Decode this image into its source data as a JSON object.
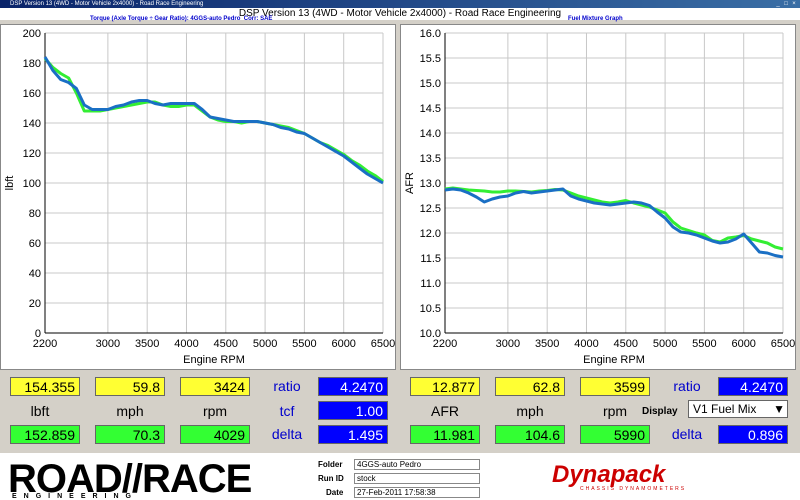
{
  "window": {
    "title": "DSP Version 13 (4WD - Motor Vehicle 2x4000) - Road Race Engineering",
    "subtitle": "DSP Version 13 (4WD - Motor Vehicle 2x4000) - Road Race Engineering"
  },
  "left_panel": {
    "title": "Torque (Axle Torque ÷ Gear Ratio): 4GGS-auto Pedro",
    "corr": "Corr: SAE"
  },
  "right_panel": {
    "title": "Fuel Mixture Graph"
  },
  "colors": {
    "green_run": "#33ee33",
    "blue_run": "#1a6fc4",
    "yellow_box": "#ffff33",
    "green_box": "#33ff33",
    "blue_box": "#0000ff"
  },
  "chart_data": [
    {
      "type": "line",
      "xlabel": "Engine RPM",
      "ylabel": "lbft",
      "xlim": [
        2200,
        6500
      ],
      "ylim": [
        0,
        200
      ],
      "xticks": [
        2200,
        3000,
        3500,
        4000,
        4500,
        5000,
        5500,
        6000,
        6500
      ],
      "yticks": [
        0,
        20,
        40,
        60,
        80,
        100,
        120,
        140,
        160,
        180,
        200
      ],
      "series": [
        {
          "color": "#33ee33",
          "x": [
            2200,
            2300,
            2400,
            2500,
            2600,
            2700,
            2800,
            2900,
            3000,
            3100,
            3200,
            3300,
            3400,
            3500,
            3600,
            3700,
            3800,
            3900,
            4000,
            4100,
            4200,
            4300,
            4400,
            4500,
            4600,
            4700,
            4800,
            4900,
            5000,
            5100,
            5200,
            5300,
            5400,
            5500,
            5600,
            5700,
            5800,
            5900,
            6000,
            6100,
            6200,
            6300,
            6400,
            6500
          ],
          "y": [
            183,
            177,
            173,
            170,
            160,
            148,
            148,
            148,
            149,
            150,
            151,
            152,
            153,
            154,
            154,
            152,
            151,
            151,
            152,
            152,
            148,
            144,
            142,
            141,
            141,
            140,
            141,
            141,
            140,
            139,
            138,
            137,
            135,
            133,
            130,
            127,
            125,
            122,
            119,
            115,
            112,
            108,
            105,
            101
          ]
        },
        {
          "color": "#1a6fc4",
          "x": [
            2200,
            2300,
            2400,
            2500,
            2600,
            2700,
            2800,
            2900,
            3000,
            3100,
            3200,
            3300,
            3400,
            3500,
            3600,
            3700,
            3800,
            3900,
            4000,
            4100,
            4200,
            4300,
            4400,
            4500,
            4600,
            4700,
            4800,
            4900,
            5000,
            5100,
            5200,
            5300,
            5400,
            5500,
            5600,
            5700,
            5800,
            5900,
            6000,
            6100,
            6200,
            6300,
            6400,
            6500
          ],
          "y": [
            184,
            175,
            169,
            167,
            163,
            152,
            149,
            149,
            149,
            151,
            152,
            154,
            155,
            155,
            153,
            152,
            153,
            153,
            153,
            153,
            149,
            144,
            143,
            142,
            141,
            141,
            141,
            141,
            140,
            139,
            137,
            136,
            134,
            133,
            130,
            127,
            124,
            121,
            118,
            114,
            110,
            106,
            103,
            100
          ]
        }
      ]
    },
    {
      "type": "line",
      "xlabel": "Engine RPM",
      "ylabel": "AFR",
      "xlim": [
        2200,
        6500
      ],
      "ylim": [
        10.0,
        16.0
      ],
      "xticks": [
        2200,
        3000,
        3500,
        4000,
        4500,
        5000,
        5500,
        6000,
        6500
      ],
      "yticks": [
        10.0,
        10.5,
        11.0,
        11.5,
        12.0,
        12.5,
        13.0,
        13.5,
        14.0,
        14.5,
        15.0,
        15.5,
        16.0
      ],
      "series": [
        {
          "color": "#33ee33",
          "x": [
            2200,
            2300,
            2400,
            2500,
            2600,
            2700,
            2800,
            2900,
            3000,
            3100,
            3200,
            3300,
            3400,
            3500,
            3600,
            3700,
            3800,
            3900,
            4000,
            4100,
            4200,
            4300,
            4400,
            4500,
            4600,
            4700,
            4800,
            4900,
            5000,
            5100,
            5200,
            5300,
            5400,
            5500,
            5600,
            5700,
            5800,
            5900,
            6000,
            6100,
            6200,
            6300,
            6400,
            6500
          ],
          "y": [
            12.88,
            12.9,
            12.88,
            12.86,
            12.85,
            12.84,
            12.82,
            12.82,
            12.84,
            12.84,
            12.83,
            12.82,
            12.84,
            12.85,
            12.87,
            12.86,
            12.8,
            12.74,
            12.7,
            12.66,
            12.62,
            12.6,
            12.62,
            12.65,
            12.6,
            12.56,
            12.52,
            12.46,
            12.4,
            12.22,
            12.1,
            12.05,
            12.0,
            11.96,
            11.85,
            11.82,
            11.9,
            11.92,
            11.95,
            11.88,
            11.84,
            11.8,
            11.72,
            11.68
          ]
        },
        {
          "color": "#1a6fc4",
          "x": [
            2200,
            2300,
            2400,
            2500,
            2600,
            2700,
            2800,
            2900,
            3000,
            3100,
            3200,
            3300,
            3400,
            3500,
            3600,
            3700,
            3800,
            3900,
            4000,
            4100,
            4200,
            4300,
            4400,
            4500,
            4600,
            4700,
            4800,
            4900,
            5000,
            5100,
            5200,
            5300,
            5400,
            5500,
            5600,
            5700,
            5800,
            5900,
            6000,
            6100,
            6200,
            6300,
            6400,
            6500
          ],
          "y": [
            12.86,
            12.88,
            12.86,
            12.8,
            12.72,
            12.62,
            12.68,
            12.72,
            12.74,
            12.8,
            12.83,
            12.8,
            12.82,
            12.84,
            12.86,
            12.88,
            12.74,
            12.68,
            12.64,
            12.6,
            12.58,
            12.56,
            12.58,
            12.6,
            12.62,
            12.6,
            12.55,
            12.42,
            12.3,
            12.12,
            12.02,
            12.0,
            11.96,
            11.9,
            11.84,
            11.8,
            11.82,
            11.88,
            11.98,
            11.8,
            11.62,
            11.6,
            11.55,
            11.52
          ]
        }
      ]
    }
  ],
  "left_readouts": {
    "row1": {
      "v1": "154.355",
      "v2": "59.8",
      "v3": "3424"
    },
    "units": [
      "lbft",
      "mph",
      "rpm"
    ],
    "row2": {
      "v1": "152.859",
      "v2": "70.3",
      "v3": "4029"
    },
    "ratio_label": "ratio",
    "ratio": "4.2470",
    "tcf_label": "tcf",
    "tcf": "1.00",
    "delta_label": "delta",
    "delta": "1.495"
  },
  "right_readouts": {
    "row1": {
      "v1": "12.877",
      "v2": "62.8",
      "v3": "3599"
    },
    "units": [
      "AFR",
      "mph",
      "rpm"
    ],
    "row2": {
      "v1": "11.981",
      "v2": "104.6",
      "v3": "5990"
    },
    "ratio_label": "ratio",
    "ratio": "4.2470",
    "display_label": "Display",
    "display_value": "V1 Fuel Mix",
    "delta_label": "delta",
    "delta": "0.896"
  },
  "footer": {
    "logo_text": "ROAD//RACE",
    "logo_subtext": "ENGINEERING",
    "folder_label": "Folder",
    "folder": "4GGS-auto Pedro",
    "run_id_label": "Run ID",
    "run_id": "stock",
    "date_label": "Date",
    "date": "27-Feb-2011 17:58:38",
    "brand": "Dynapack",
    "brand_sub": "CHASSIS DYNAMOMETERS"
  }
}
